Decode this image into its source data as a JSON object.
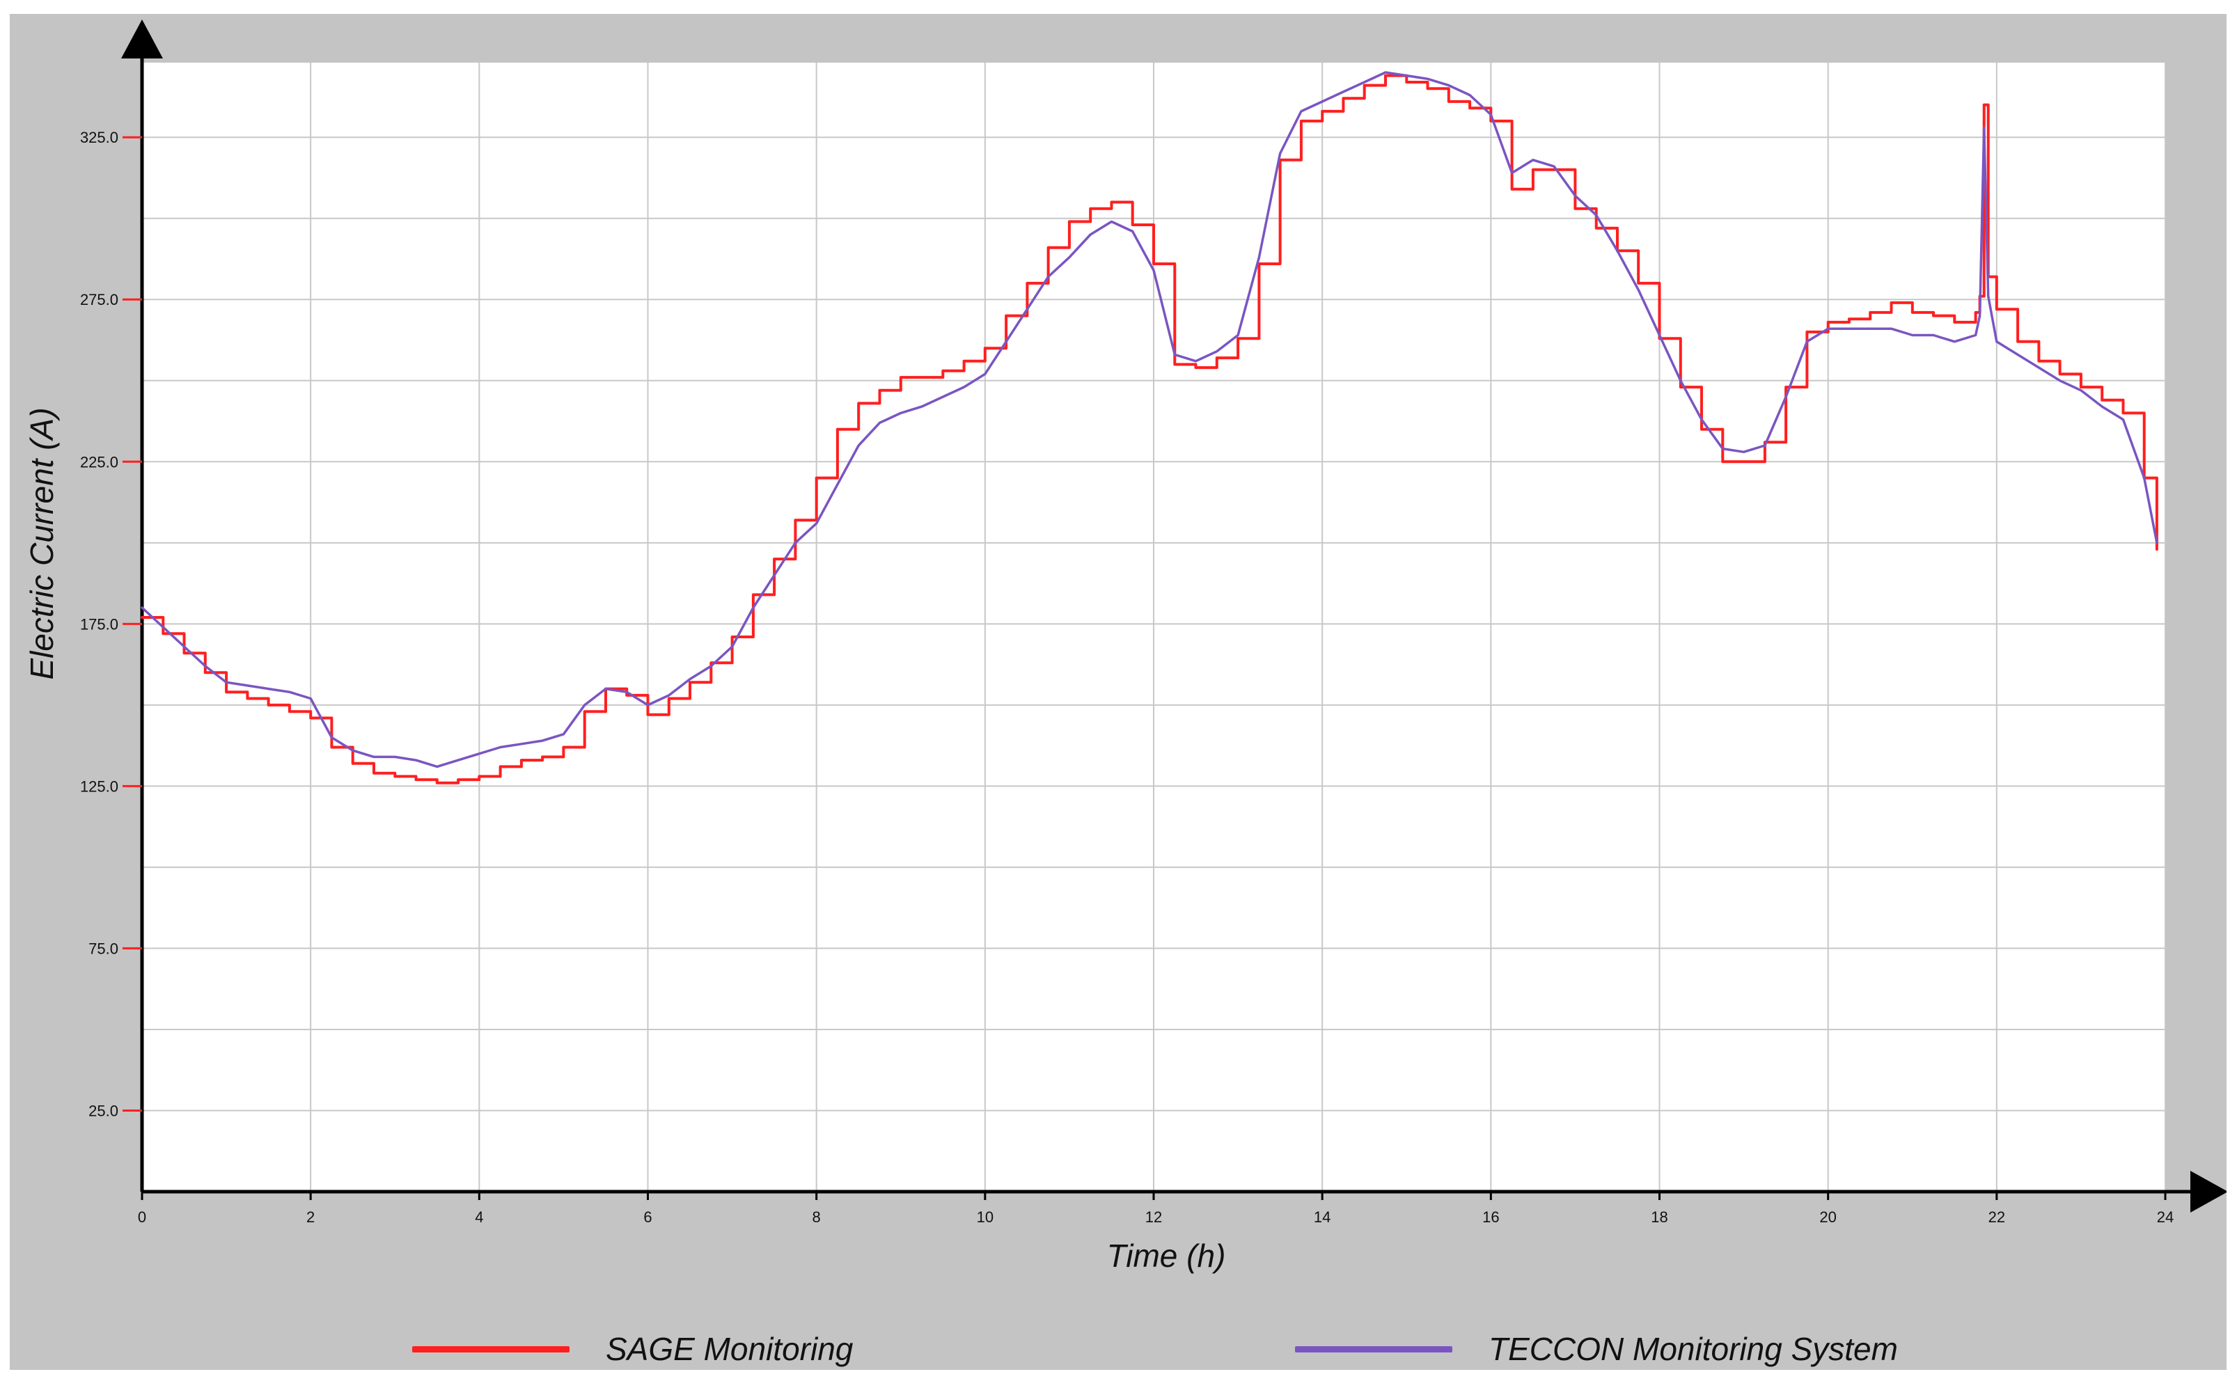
{
  "chart_data": {
    "type": "line",
    "title": "",
    "xlabel": "Time (h)",
    "ylabel": "Electric Current (A)",
    "xlim": [
      0,
      24
    ],
    "ylim": [
      0,
      348
    ],
    "x_ticks": [
      0,
      2,
      4,
      6,
      8,
      10,
      12,
      14,
      16,
      18,
      20,
      22,
      24
    ],
    "y_ticks": [
      25.0,
      75.0,
      125.0,
      175.0,
      225.0,
      275.0,
      325.0
    ],
    "grid": true,
    "legend_position": "bottom",
    "series": [
      {
        "name": "SAGE Monitoring",
        "color": "#ff1f1f",
        "style": "step",
        "x": [
          0,
          0.25,
          0.5,
          0.75,
          1.0,
          1.25,
          1.5,
          1.75,
          2.0,
          2.25,
          2.5,
          2.75,
          3.0,
          3.25,
          3.5,
          3.75,
          4.0,
          4.25,
          4.5,
          4.75,
          5.0,
          5.25,
          5.5,
          5.75,
          6.0,
          6.25,
          6.5,
          6.75,
          7.0,
          7.25,
          7.5,
          7.75,
          8.0,
          8.25,
          8.5,
          8.75,
          9.0,
          9.25,
          9.5,
          9.75,
          10.0,
          10.25,
          10.5,
          10.75,
          11.0,
          11.25,
          11.5,
          11.75,
          12.0,
          12.25,
          12.5,
          12.75,
          13.0,
          13.25,
          13.5,
          13.75,
          14.0,
          14.25,
          14.5,
          14.75,
          15.0,
          15.25,
          15.5,
          15.75,
          16.0,
          16.25,
          16.5,
          16.75,
          17.0,
          17.25,
          17.5,
          17.75,
          18.0,
          18.25,
          18.5,
          18.75,
          19.0,
          19.25,
          19.5,
          19.75,
          20.0,
          20.25,
          20.5,
          20.75,
          21.0,
          21.25,
          21.5,
          21.75,
          21.8,
          21.85,
          21.9,
          22.0,
          22.25,
          22.5,
          22.75,
          23.0,
          23.25,
          23.5,
          23.75,
          23.9
        ],
        "values": [
          177,
          172,
          166,
          160,
          154,
          152,
          150,
          148,
          146,
          137,
          132,
          129,
          128,
          127,
          126,
          127,
          128,
          131,
          133,
          134,
          137,
          148,
          155,
          153,
          147,
          152,
          157,
          163,
          171,
          184,
          195,
          207,
          220,
          235,
          243,
          247,
          251,
          251,
          253,
          256,
          260,
          270,
          280,
          291,
          299,
          303,
          305,
          298,
          286,
          255,
          254,
          257,
          263,
          286,
          318,
          330,
          333,
          337,
          341,
          344,
          342,
          340,
          336,
          334,
          330,
          309,
          315,
          315,
          303,
          297,
          290,
          280,
          263,
          248,
          235,
          225,
          225,
          231,
          248,
          265,
          268,
          269,
          271,
          274,
          271,
          270,
          268,
          271,
          276,
          335,
          282,
          272,
          262,
          256,
          252,
          248,
          244,
          240,
          220,
          198
        ]
      },
      {
        "name": "TECCON Monitoring System",
        "color": "#7a55c2",
        "style": "line",
        "x": [
          0,
          0.25,
          0.5,
          0.75,
          1.0,
          1.25,
          1.5,
          1.75,
          2.0,
          2.25,
          2.5,
          2.75,
          3.0,
          3.25,
          3.5,
          3.75,
          4.0,
          4.25,
          4.5,
          4.75,
          5.0,
          5.25,
          5.5,
          5.75,
          6.0,
          6.25,
          6.5,
          6.75,
          7.0,
          7.25,
          7.5,
          7.75,
          8.0,
          8.25,
          8.5,
          8.75,
          9.0,
          9.25,
          9.5,
          9.75,
          10.0,
          10.25,
          10.5,
          10.75,
          11.0,
          11.25,
          11.5,
          11.75,
          12.0,
          12.25,
          12.5,
          12.75,
          13.0,
          13.25,
          13.5,
          13.75,
          14.0,
          14.25,
          14.5,
          14.75,
          15.0,
          15.25,
          15.5,
          15.75,
          16.0,
          16.25,
          16.5,
          16.75,
          17.0,
          17.25,
          17.5,
          17.75,
          18.0,
          18.25,
          18.5,
          18.75,
          19.0,
          19.25,
          19.5,
          19.75,
          20.0,
          20.25,
          20.5,
          20.75,
          21.0,
          21.25,
          21.5,
          21.75,
          21.8,
          21.85,
          21.9,
          22.0,
          22.25,
          22.5,
          22.75,
          23.0,
          23.25,
          23.5,
          23.75,
          23.9
        ],
        "values": [
          180,
          174,
          168,
          162,
          157,
          156,
          155,
          154,
          152,
          140,
          136,
          134,
          134,
          133,
          131,
          133,
          135,
          137,
          138,
          139,
          141,
          150,
          155,
          154,
          150,
          153,
          158,
          162,
          168,
          180,
          190,
          200,
          206,
          218,
          230,
          237,
          240,
          242,
          245,
          248,
          252,
          262,
          272,
          282,
          288,
          295,
          299,
          296,
          284,
          258,
          256,
          259,
          264,
          288,
          320,
          333,
          336,
          339,
          342,
          345,
          344,
          343,
          341,
          338,
          332,
          314,
          318,
          316,
          307,
          301,
          290,
          278,
          264,
          250,
          238,
          229,
          228,
          230,
          245,
          262,
          266,
          266,
          266,
          266,
          264,
          264,
          262,
          264,
          270,
          328,
          276,
          262,
          258,
          254,
          250,
          247,
          242,
          238,
          220,
          200
        ]
      }
    ]
  }
}
